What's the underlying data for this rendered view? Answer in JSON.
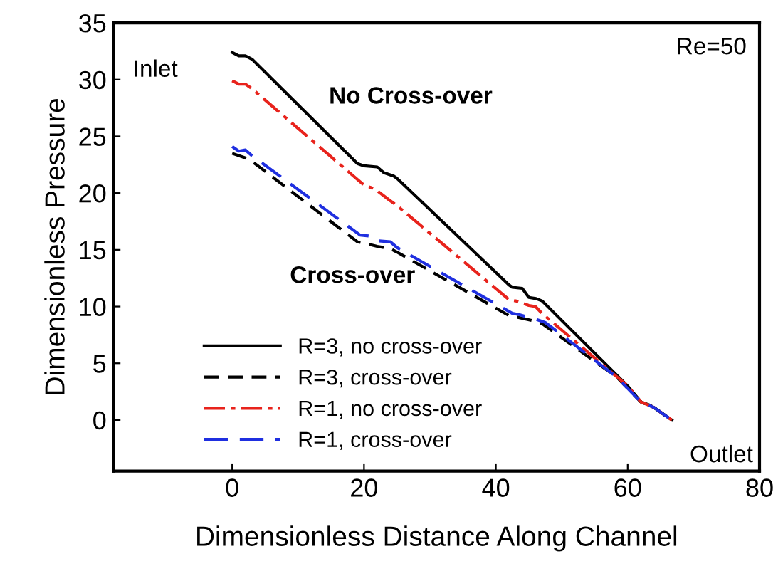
{
  "chart_data": {
    "type": "line",
    "xlabel": "Dimensionless Distance Along Channel",
    "ylabel": "Dimensionless Pressure",
    "xlim": [
      -18,
      80
    ],
    "ylim": [
      -4.5,
      35
    ],
    "xticks": [
      0,
      20,
      40,
      60,
      80
    ],
    "yticks": [
      0,
      5,
      10,
      15,
      20,
      25,
      30,
      35
    ],
    "grid": false,
    "legend": "bottom left",
    "annotations": [
      "Inlet",
      "Re=50",
      "No Cross-over",
      "Cross-over",
      "Outlet"
    ],
    "series": [
      {
        "name": "R=3, no cross-over",
        "color": "#000000",
        "line_style": "solid",
        "x": [
          0,
          1,
          2,
          3,
          19,
          20,
          22,
          23,
          24.5,
          25,
          42,
          42.5,
          44,
          45,
          46.1,
          47,
          60,
          62,
          63.4,
          64.5,
          66.7
        ],
        "values": [
          32.4,
          32.1,
          32.1,
          31.8,
          22.6,
          22.4,
          22.3,
          21.8,
          21.5,
          21.3,
          11.9,
          11.7,
          11.6,
          10.8,
          10.7,
          10.5,
          3.0,
          1.6,
          1.3,
          0.9,
          0.0
        ]
      },
      {
        "name": "R=3, cross-over",
        "color": "#000000",
        "line_style": "dashed",
        "x": [
          0,
          2,
          3,
          19,
          20,
          22,
          24,
          25,
          42,
          43,
          46,
          47,
          58.3,
          62,
          64,
          66.7
        ],
        "values": [
          23.5,
          23.1,
          22.8,
          15.7,
          15.6,
          15.3,
          15.1,
          14.8,
          9.2,
          9.1,
          8.7,
          8.5,
          3.8,
          1.6,
          1.1,
          0.0
        ]
      },
      {
        "name": "R=1, no cross-over",
        "color": "#e8231c",
        "line_style": "dashdot",
        "x": [
          0,
          1,
          2,
          3,
          20,
          21,
          22,
          23.8,
          25,
          42,
          43,
          45,
          46,
          47,
          60,
          62,
          64,
          66.7
        ],
        "values": [
          29.9,
          29.6,
          29.6,
          29.2,
          20.7,
          20.5,
          20.2,
          19.4,
          18.9,
          10.6,
          10.5,
          10.1,
          10.0,
          9.4,
          3.0,
          1.6,
          1.1,
          0.0
        ]
      },
      {
        "name": "R=1, cross-over",
        "color": "#1f2fe0",
        "line_style": "dashed",
        "x": [
          0,
          1,
          2,
          3,
          19.4,
          21,
          22,
          24,
          25,
          42.5,
          43.5,
          46.5,
          47.5,
          58.3,
          62,
          64,
          66.7
        ],
        "values": [
          24.1,
          23.7,
          23.8,
          23.3,
          16.3,
          16.2,
          15.8,
          15.7,
          15.2,
          9.4,
          9.3,
          8.8,
          8.6,
          3.8,
          1.6,
          1.1,
          0.0
        ]
      }
    ]
  }
}
